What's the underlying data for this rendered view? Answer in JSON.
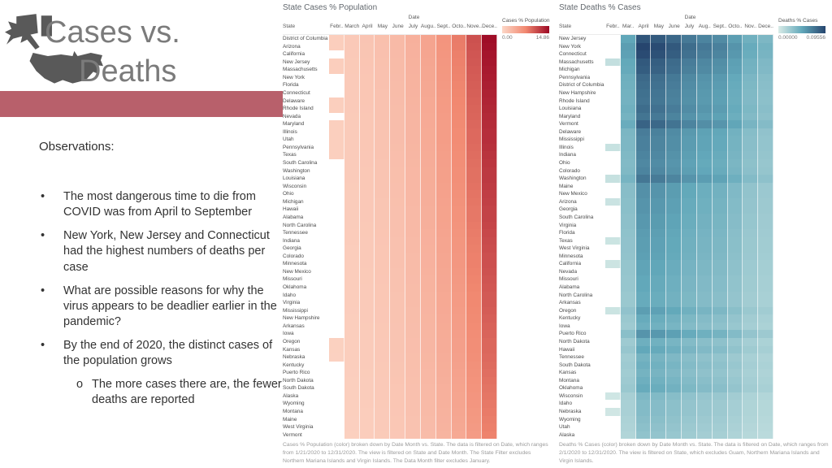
{
  "slide": {
    "title_line1": "Cases vs.",
    "title_line2": "Deaths",
    "accent_bar_color": "#b8606b",
    "icon_color": "#595959",
    "observations_heading": "Observations:",
    "bullets": [
      "The most dangerous time to die from COVID was from April to September",
      "New York, New Jersey and Connecticut had the highest numbers of deaths per case",
      "What are possible reasons for why the virus appears to be deadlier earlier in the pandemic?",
      "By the end of 2020, the distinct cases of the population grows"
    ],
    "sub_bullet": "The more cases there are, the fewer deaths are reported"
  },
  "chart_data": [
    {
      "type": "heatmap",
      "title": "State Cases % Population",
      "date_axis_label": "Date",
      "row_axis_label": "State",
      "columns": [
        "Febr..",
        "March",
        "April",
        "May",
        "June",
        "July",
        "Augu..",
        "Sept..",
        "Octo..",
        "Nove..",
        "Dece.."
      ],
      "legend": {
        "title": "Cases % Population",
        "min": "0.00",
        "max": "14.86",
        "color_min": "#fcd7c7",
        "color_mid": "#f18870",
        "color_max": "#9c0824"
      },
      "caption": "Cases % Population (color) broken down by Date Month vs. State. The data is filtered on Date, which ranges from 1/21/2020 to 12/31/2020. The view is filtered on State and Date Month. The State Filter excludes Northern Mariana Islands and Virgin Islands. The Data Month filter excludes January.",
      "month_profile": [
        0.06,
        0.09,
        0.12,
        0.15,
        0.19,
        0.25,
        0.33,
        0.43,
        0.56,
        0.73,
        1.0
      ],
      "rows": [
        {
          "state": "District of Columbia",
          "scale": 0.98,
          "feb": true
        },
        {
          "state": "Arizona",
          "scale": 0.97,
          "feb": true
        },
        {
          "state": "California",
          "scale": 0.95,
          "feb": false
        },
        {
          "state": "New Jersey",
          "scale": 0.94,
          "feb": true
        },
        {
          "state": "Massachusetts",
          "scale": 0.93,
          "feb": true
        },
        {
          "state": "New York",
          "scale": 0.92,
          "feb": false
        },
        {
          "state": "Florida",
          "scale": 0.91,
          "feb": false
        },
        {
          "state": "Connecticut",
          "scale": 0.9,
          "feb": false
        },
        {
          "state": "Delaware",
          "scale": 0.89,
          "feb": true
        },
        {
          "state": "Rhode Island",
          "scale": 0.88,
          "feb": true
        },
        {
          "state": "Nevada",
          "scale": 0.87,
          "feb": false
        },
        {
          "state": "Maryland",
          "scale": 0.86,
          "feb": true
        },
        {
          "state": "Illinois",
          "scale": 0.85,
          "feb": true
        },
        {
          "state": "Utah",
          "scale": 0.85,
          "feb": true
        },
        {
          "state": "Pennsylvania",
          "scale": 0.84,
          "feb": true
        },
        {
          "state": "Texas",
          "scale": 0.83,
          "feb": true
        },
        {
          "state": "South Carolina",
          "scale": 0.82,
          "feb": false
        },
        {
          "state": "Washington",
          "scale": 0.81,
          "feb": false
        },
        {
          "state": "Louisiana",
          "scale": 0.81,
          "feb": false
        },
        {
          "state": "Wisconsin",
          "scale": 0.8,
          "feb": false
        },
        {
          "state": "Ohio",
          "scale": 0.79,
          "feb": false
        },
        {
          "state": "Michigan",
          "scale": 0.78,
          "feb": false
        },
        {
          "state": "Hawaii",
          "scale": 0.77,
          "feb": false
        },
        {
          "state": "Alabama",
          "scale": 0.77,
          "feb": false
        },
        {
          "state": "North Carolina",
          "scale": 0.76,
          "feb": false
        },
        {
          "state": "Tennessee",
          "scale": 0.75,
          "feb": false
        },
        {
          "state": "Indiana",
          "scale": 0.74,
          "feb": false
        },
        {
          "state": "Georgia",
          "scale": 0.73,
          "feb": false
        },
        {
          "state": "Colorado",
          "scale": 0.72,
          "feb": false
        },
        {
          "state": "Minnesota",
          "scale": 0.72,
          "feb": false
        },
        {
          "state": "New Mexico",
          "scale": 0.71,
          "feb": false
        },
        {
          "state": "Missouri",
          "scale": 0.7,
          "feb": false
        },
        {
          "state": "Oklahoma",
          "scale": 0.69,
          "feb": false
        },
        {
          "state": "Idaho",
          "scale": 0.68,
          "feb": false
        },
        {
          "state": "Virginia",
          "scale": 0.68,
          "feb": false
        },
        {
          "state": "Mississippi",
          "scale": 0.67,
          "feb": false
        },
        {
          "state": "New Hampshire",
          "scale": 0.66,
          "feb": false
        },
        {
          "state": "Arkansas",
          "scale": 0.65,
          "feb": false
        },
        {
          "state": "Iowa",
          "scale": 0.64,
          "feb": false
        },
        {
          "state": "Oregon",
          "scale": 0.63,
          "feb": true
        },
        {
          "state": "Kansas",
          "scale": 0.63,
          "feb": true
        },
        {
          "state": "Nebraska",
          "scale": 0.62,
          "feb": true
        },
        {
          "state": "Kentucky",
          "scale": 0.61,
          "feb": false
        },
        {
          "state": "Puerto Rico",
          "scale": 0.6,
          "feb": false
        },
        {
          "state": "North Dakota",
          "scale": 0.59,
          "feb": false
        },
        {
          "state": "South Dakota",
          "scale": 0.58,
          "feb": false
        },
        {
          "state": "Alaska",
          "scale": 0.57,
          "feb": false
        },
        {
          "state": "Wyoming",
          "scale": 0.56,
          "feb": false
        },
        {
          "state": "Montana",
          "scale": 0.55,
          "feb": false
        },
        {
          "state": "Maine",
          "scale": 0.54,
          "feb": false
        },
        {
          "state": "West Virginia",
          "scale": 0.53,
          "feb": false
        },
        {
          "state": "Vermont",
          "scale": 0.52,
          "feb": false
        }
      ]
    },
    {
      "type": "heatmap",
      "title": "State Deaths % Cases",
      "date_axis_label": "Date",
      "row_axis_label": "State",
      "columns": [
        "Febr..",
        "Mar..",
        "April",
        "May",
        "June",
        "July",
        "Aug..",
        "Sept..",
        "Octo..",
        "Nov..",
        "Dece.."
      ],
      "legend": {
        "title": "Deaths % Cases",
        "min": "0.00000",
        "max": "0.09556",
        "color_min": "#d8ebe7",
        "color_mid": "#62a8ba",
        "color_max": "#26456e"
      },
      "caption": "Deaths % Cases (color) broken down by Date Month vs. State. The data is filtered on Date, which ranges from 2/1/2020 to 12/31/2020. The view is filtered on State, which excludes Guam, Northern Mariana Islands and Virgin Islands.",
      "month_profile": [
        0.1,
        0.55,
        1.0,
        0.97,
        0.9,
        0.8,
        0.74,
        0.7,
        0.6,
        0.48,
        0.42
      ],
      "rows": [
        {
          "state": "New Jersey",
          "scale": 0.92,
          "feb": false
        },
        {
          "state": "New York",
          "scale": 1.0,
          "feb": false
        },
        {
          "state": "Connecticut",
          "scale": 0.97,
          "feb": false
        },
        {
          "state": "Massachusetts",
          "scale": 0.9,
          "feb": true
        },
        {
          "state": "Michigan",
          "scale": 0.88,
          "feb": false
        },
        {
          "state": "Pennsylvania",
          "scale": 0.82,
          "feb": false
        },
        {
          "state": "District of Columbia",
          "scale": 0.8,
          "feb": false
        },
        {
          "state": "New Hampshire",
          "scale": 0.78,
          "feb": false
        },
        {
          "state": "Rhode Island",
          "scale": 0.77,
          "feb": false
        },
        {
          "state": "Louisiana",
          "scale": 0.8,
          "feb": false
        },
        {
          "state": "Maryland",
          "scale": 0.76,
          "feb": false
        },
        {
          "state": "Vermont",
          "scale": 0.85,
          "feb": false
        },
        {
          "state": "Delaware",
          "scale": 0.72,
          "feb": false
        },
        {
          "state": "Mississippi",
          "scale": 0.7,
          "feb": false
        },
        {
          "state": "Illinois",
          "scale": 0.7,
          "feb": true
        },
        {
          "state": "Indiana",
          "scale": 0.68,
          "feb": false
        },
        {
          "state": "Ohio",
          "scale": 0.66,
          "feb": false
        },
        {
          "state": "Colorado",
          "scale": 0.68,
          "feb": false
        },
        {
          "state": "Washington",
          "scale": 0.75,
          "feb": true
        },
        {
          "state": "Maine",
          "scale": 0.62,
          "feb": false
        },
        {
          "state": "New Mexico",
          "scale": 0.62,
          "feb": false
        },
        {
          "state": "Arizona",
          "scale": 0.6,
          "feb": true
        },
        {
          "state": "Georgia",
          "scale": 0.6,
          "feb": false
        },
        {
          "state": "South Carolina",
          "scale": 0.58,
          "feb": false
        },
        {
          "state": "Virginia",
          "scale": 0.58,
          "feb": false
        },
        {
          "state": "Florida",
          "scale": 0.56,
          "feb": false
        },
        {
          "state": "Texas",
          "scale": 0.55,
          "feb": true
        },
        {
          "state": "West Virginia",
          "scale": 0.55,
          "feb": false
        },
        {
          "state": "Minnesota",
          "scale": 0.54,
          "feb": false
        },
        {
          "state": "California",
          "scale": 0.52,
          "feb": true
        },
        {
          "state": "Nevada",
          "scale": 0.52,
          "feb": false
        },
        {
          "state": "Missouri",
          "scale": 0.5,
          "feb": false
        },
        {
          "state": "Alabama",
          "scale": 0.5,
          "feb": false
        },
        {
          "state": "North Carolina",
          "scale": 0.48,
          "feb": false
        },
        {
          "state": "Arkansas",
          "scale": 0.48,
          "feb": false
        },
        {
          "state": "Oregon",
          "scale": 0.55,
          "feb": true
        },
        {
          "state": "Kentucky",
          "scale": 0.48,
          "feb": false
        },
        {
          "state": "Iowa",
          "scale": 0.45,
          "feb": false
        },
        {
          "state": "Puerto Rico",
          "scale": 0.6,
          "feb": false
        },
        {
          "state": "North Dakota",
          "scale": 0.45,
          "feb": false
        },
        {
          "state": "Hawaii",
          "scale": 0.5,
          "feb": false
        },
        {
          "state": "Tennessee",
          "scale": 0.42,
          "feb": false
        },
        {
          "state": "South Dakota",
          "scale": 0.45,
          "feb": false
        },
        {
          "state": "Kansas",
          "scale": 0.42,
          "feb": false
        },
        {
          "state": "Montana",
          "scale": 0.45,
          "feb": false
        },
        {
          "state": "Oklahoma",
          "scale": 0.48,
          "feb": false
        },
        {
          "state": "Wisconsin",
          "scale": 0.38,
          "feb": true
        },
        {
          "state": "Idaho",
          "scale": 0.36,
          "feb": false
        },
        {
          "state": "Nebraska",
          "scale": 0.36,
          "feb": true
        },
        {
          "state": "Wyoming",
          "scale": 0.34,
          "feb": false
        },
        {
          "state": "Utah",
          "scale": 0.32,
          "feb": false
        },
        {
          "state": "Alaska",
          "scale": 0.3,
          "feb": false
        }
      ]
    }
  ]
}
